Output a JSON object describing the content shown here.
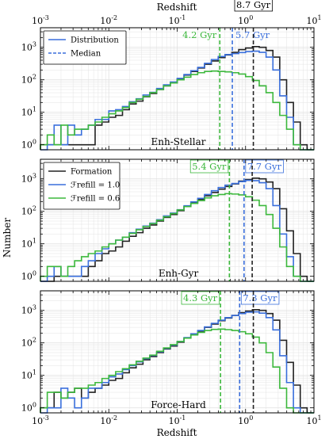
{
  "xlabel_top": "Redshift",
  "xlabel_bottom": "Redshift",
  "ylabel": "Number",
  "colors": {
    "formation": "#222222",
    "fr10": "#3a6fdc",
    "fr06": "#3cb83c",
    "grid": "#e3e3e3"
  },
  "chart_data": [
    {
      "type": "histogram-step",
      "name": "Enh-Stellar",
      "xscale": "log",
      "yscale": "log",
      "xlim": [
        0.001,
        10
      ],
      "ylim": [
        0.7,
        4000
      ],
      "grid": true,
      "legend": {
        "placement": "top-left",
        "entries": [
          {
            "label": "Distribution",
            "style": "solid"
          },
          {
            "label": "Median",
            "style": "dashed"
          }
        ]
      },
      "bin_edges_log10": [
        -3.0,
        -2.9,
        -2.8,
        -2.7,
        -2.6,
        -2.5,
        -2.4,
        -2.3,
        -2.2,
        -2.1,
        -2.0,
        -1.9,
        -1.8,
        -1.7,
        -1.6,
        -1.5,
        -1.4,
        -1.3,
        -1.2,
        -1.1,
        -1.0,
        -0.9,
        -0.8,
        -0.7,
        -0.6,
        -0.5,
        -0.4,
        -0.3,
        -0.2,
        -0.1,
        0.0,
        0.1,
        0.2,
        0.3,
        0.4,
        0.5,
        0.6,
        0.7,
        0.8,
        0.9,
        1.0
      ],
      "series": [
        {
          "key": "formation",
          "counts": [
            1,
            1,
            1,
            1,
            1,
            1,
            1,
            1,
            4,
            5,
            7,
            8,
            12,
            18,
            22,
            30,
            38,
            50,
            65,
            80,
            105,
            140,
            180,
            230,
            300,
            380,
            480,
            580,
            700,
            850,
            950,
            1050,
            1000,
            800,
            500,
            100,
            20,
            5,
            1,
            0
          ]
        },
        {
          "key": "fr10",
          "counts": [
            0,
            1,
            4,
            1,
            4,
            2,
            3,
            4,
            6,
            6,
            11,
            12,
            15,
            21,
            26,
            34,
            41,
            54,
            70,
            85,
            110,
            145,
            190,
            240,
            320,
            420,
            520,
            600,
            640,
            690,
            740,
            760,
            700,
            500,
            200,
            32,
            7,
            1,
            0,
            0
          ]
        },
        {
          "key": "fr06",
          "counts": [
            1,
            2,
            1,
            4,
            2,
            3,
            3,
            4,
            5,
            7,
            9,
            11,
            14,
            20,
            25,
            31,
            40,
            50,
            65,
            80,
            100,
            120,
            145,
            165,
            180,
            185,
            180,
            175,
            165,
            150,
            125,
            95,
            65,
            40,
            20,
            8,
            3,
            1,
            0,
            0
          ]
        }
      ],
      "medians": [
        {
          "key": "fr06",
          "redshift": 0.42,
          "label": "4.2 Gyr",
          "boxed": false
        },
        {
          "key": "fr10",
          "redshift": 0.64,
          "label": "5.7 Gyr",
          "boxed": false
        },
        {
          "key": "formation",
          "redshift": 1.3,
          "label": "8.7 Gyr",
          "boxed": true
        }
      ]
    },
    {
      "type": "histogram-step",
      "name": "Enh-Gyr",
      "xscale": "log",
      "yscale": "log",
      "xlim": [
        0.001,
        10
      ],
      "ylim": [
        0.7,
        4000
      ],
      "grid": true,
      "legend": {
        "placement": "top-left",
        "entries": [
          {
            "label": "Formation",
            "style": "solid"
          },
          {
            "label": "ℱrefill = 1.0",
            "style": "solid"
          },
          {
            "label": "ℱrefill = 0.6",
            "style": "solid"
          }
        ]
      },
      "bin_edges_log10": [
        -3.0,
        -2.9,
        -2.8,
        -2.7,
        -2.6,
        -2.5,
        -2.4,
        -2.3,
        -2.2,
        -2.1,
        -2.0,
        -1.9,
        -1.8,
        -1.7,
        -1.6,
        -1.5,
        -1.4,
        -1.3,
        -1.2,
        -1.1,
        -1.0,
        -0.9,
        -0.8,
        -0.7,
        -0.6,
        -0.5,
        -0.4,
        -0.3,
        -0.2,
        -0.1,
        0.0,
        0.1,
        0.2,
        0.3,
        0.4,
        0.5,
        0.6,
        0.7,
        0.8,
        0.9,
        1.0
      ],
      "series": [
        {
          "key": "formation",
          "counts": [
            0,
            0,
            1,
            1,
            1,
            1,
            1,
            2,
            3,
            5,
            6,
            8,
            12,
            17,
            22,
            30,
            38,
            50,
            65,
            80,
            105,
            140,
            180,
            230,
            300,
            380,
            480,
            580,
            700,
            850,
            950,
            1050,
            1000,
            800,
            500,
            120,
            25,
            5,
            1,
            0
          ]
        },
        {
          "key": "fr10",
          "counts": [
            0,
            1,
            2,
            1,
            1,
            1,
            2,
            3,
            5,
            7,
            10,
            13,
            16,
            22,
            28,
            35,
            43,
            55,
            72,
            88,
            112,
            148,
            195,
            250,
            330,
            430,
            540,
            640,
            720,
            820,
            900,
            880,
            760,
            500,
            150,
            20,
            4,
            1,
            0,
            0
          ]
        },
        {
          "key": "fr06",
          "counts": [
            1,
            2,
            2,
            1,
            2,
            3,
            4,
            5,
            6,
            8,
            10,
            13,
            16,
            21,
            27,
            34,
            42,
            53,
            68,
            85,
            110,
            140,
            175,
            215,
            260,
            300,
            330,
            350,
            340,
            320,
            280,
            220,
            150,
            80,
            30,
            8,
            2,
            1,
            0,
            0
          ]
        }
      ],
      "medians": [
        {
          "key": "fr06",
          "redshift": 0.58,
          "label": "5.4 Gyr",
          "boxed": true
        },
        {
          "key": "fr10",
          "redshift": 0.95,
          "label": "7.7 Gyr",
          "boxed": true
        },
        {
          "key": "formation",
          "redshift": 1.25,
          "label": "",
          "boxed": false
        }
      ]
    },
    {
      "type": "histogram-step",
      "name": "Force-Hard",
      "xscale": "log",
      "yscale": "log",
      "xlim": [
        0.001,
        10
      ],
      "ylim": [
        0.7,
        4000
      ],
      "grid": true,
      "bin_edges_log10": [
        -3.0,
        -2.9,
        -2.8,
        -2.7,
        -2.6,
        -2.5,
        -2.4,
        -2.3,
        -2.2,
        -2.1,
        -2.0,
        -1.9,
        -1.8,
        -1.7,
        -1.6,
        -1.5,
        -1.4,
        -1.3,
        -1.2,
        -1.1,
        -1.0,
        -0.9,
        -0.8,
        -0.7,
        -0.6,
        -0.5,
        -0.4,
        -0.3,
        -0.2,
        -0.1,
        0.0,
        0.1,
        0.2,
        0.3,
        0.4,
        0.5,
        0.6,
        0.7,
        0.8,
        0.9,
        1.0
      ],
      "series": [
        {
          "key": "formation",
          "counts": [
            1,
            1,
            3,
            2,
            3,
            4,
            2,
            3,
            4,
            5,
            7,
            8,
            12,
            17,
            22,
            30,
            38,
            50,
            65,
            80,
            105,
            140,
            180,
            230,
            300,
            380,
            480,
            580,
            700,
            850,
            950,
            1050,
            1000,
            800,
            500,
            120,
            25,
            5,
            1,
            0
          ]
        },
        {
          "key": "fr10",
          "counts": [
            0,
            1,
            1,
            4,
            2,
            1,
            2,
            4,
            4,
            6,
            9,
            11,
            15,
            20,
            26,
            33,
            41,
            53,
            68,
            85,
            110,
            145,
            190,
            240,
            310,
            400,
            500,
            600,
            700,
            800,
            880,
            900,
            820,
            600,
            250,
            40,
            6,
            1,
            0,
            0
          ]
        },
        {
          "key": "fr06",
          "counts": [
            1,
            3,
            3,
            2,
            3,
            4,
            4,
            5,
            6,
            8,
            10,
            13,
            16,
            21,
            27,
            34,
            42,
            55,
            70,
            88,
            110,
            140,
            175,
            210,
            240,
            260,
            265,
            255,
            240,
            220,
            190,
            150,
            100,
            50,
            18,
            4,
            1,
            0,
            0,
            0
          ]
        }
      ],
      "medians": [
        {
          "key": "fr06",
          "redshift": 0.43,
          "label": "4.3 Gyr",
          "boxed": true
        },
        {
          "key": "fr10",
          "redshift": 0.82,
          "label": "7.3 Gyr",
          "boxed": true
        },
        {
          "key": "formation",
          "redshift": 1.3,
          "label": "",
          "boxed": false
        }
      ]
    }
  ],
  "x_tick_labels": [
    {
      "exp": -3,
      "base": "10",
      "sup": "-3"
    },
    {
      "exp": -2,
      "base": "10",
      "sup": "-2"
    },
    {
      "exp": -1,
      "base": "10",
      "sup": "-1"
    },
    {
      "exp": 0,
      "base": "10",
      "sup": "0"
    },
    {
      "exp": 1,
      "base": "10",
      "sup": "1"
    }
  ],
  "y_tick_labels": [
    {
      "exp": 0,
      "base": "10",
      "sup": "0"
    },
    {
      "exp": 1,
      "base": "10",
      "sup": "1"
    },
    {
      "exp": 2,
      "base": "10",
      "sup": "2"
    },
    {
      "exp": 3,
      "base": "10",
      "sup": "3"
    }
  ]
}
